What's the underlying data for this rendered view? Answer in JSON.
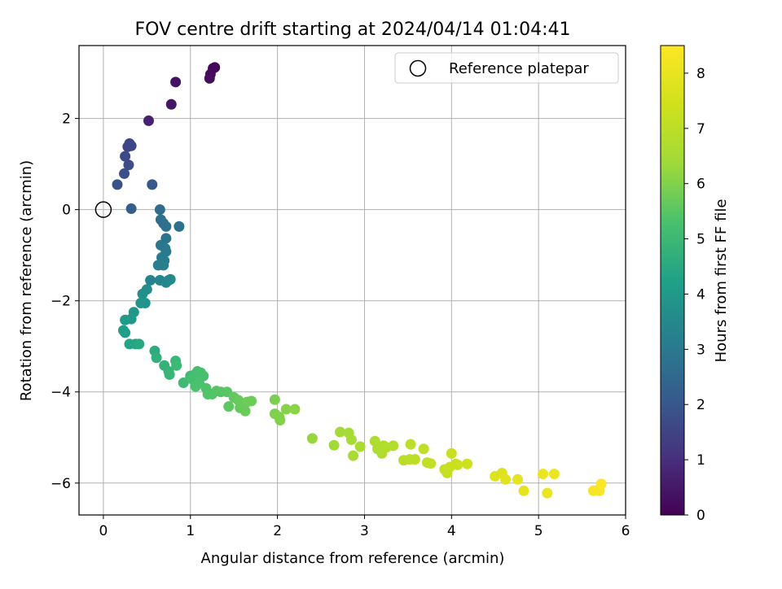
{
  "chart_data": {
    "type": "scatter",
    "title": "FOV centre drift starting at 2024/04/14 01:04:41",
    "xlabel": "Angular distance from reference (arcmin)",
    "ylabel": "Rotation from reference (arcmin)",
    "xlim": [
      -0.28,
      6.0
    ],
    "ylim": [
      -6.7,
      3.6
    ],
    "xticks": [
      0,
      1,
      2,
      3,
      4,
      5,
      6
    ],
    "yticks": [
      -6,
      -4,
      -2,
      0,
      2
    ],
    "grid": true,
    "legend": {
      "position": "top-right",
      "entries": [
        "Reference platepar"
      ]
    },
    "reference_point": {
      "x": 0,
      "y": 0
    },
    "colorbar": {
      "label": "Hours from first FF file",
      "range": [
        0,
        8.5
      ],
      "ticks": [
        0,
        1,
        2,
        3,
        4,
        5,
        6,
        7,
        8
      ],
      "colormap": "viridis"
    },
    "points": [
      {
        "x": 1.28,
        "y": 3.12,
        "t": 0.1
      },
      {
        "x": 1.26,
        "y": 3.1,
        "t": 0.15
      },
      {
        "x": 1.23,
        "y": 2.97,
        "t": 0.2
      },
      {
        "x": 1.22,
        "y": 2.88,
        "t": 0.25
      },
      {
        "x": 0.83,
        "y": 2.8,
        "t": 0.35
      },
      {
        "x": 0.78,
        "y": 2.31,
        "t": 0.45
      },
      {
        "x": 0.52,
        "y": 1.95,
        "t": 0.7
      },
      {
        "x": 0.3,
        "y": 1.45,
        "t": 1.5
      },
      {
        "x": 0.32,
        "y": 1.4,
        "t": 1.55
      },
      {
        "x": 0.28,
        "y": 1.38,
        "t": 1.6
      },
      {
        "x": 0.25,
        "y": 1.17,
        "t": 1.7
      },
      {
        "x": 0.29,
        "y": 0.98,
        "t": 1.75
      },
      {
        "x": 0.24,
        "y": 0.79,
        "t": 1.8
      },
      {
        "x": 0.16,
        "y": 0.55,
        "t": 1.9
      },
      {
        "x": 0.56,
        "y": 0.55,
        "t": 2.0
      },
      {
        "x": 0.32,
        "y": 0.02,
        "t": 2.2
      },
      {
        "x": 0.65,
        "y": 0.0,
        "t": 2.6
      },
      {
        "x": 0.66,
        "y": -0.22,
        "t": 2.65
      },
      {
        "x": 0.69,
        "y": -0.3,
        "t": 2.7
      },
      {
        "x": 0.72,
        "y": -0.37,
        "t": 2.75
      },
      {
        "x": 0.87,
        "y": -0.37,
        "t": 2.8
      },
      {
        "x": 0.72,
        "y": -0.63,
        "t": 2.85
      },
      {
        "x": 0.66,
        "y": -0.78,
        "t": 2.9
      },
      {
        "x": 0.71,
        "y": -0.85,
        "t": 2.95
      },
      {
        "x": 0.72,
        "y": -0.92,
        "t": 3.0
      },
      {
        "x": 0.67,
        "y": -1.05,
        "t": 3.05
      },
      {
        "x": 0.7,
        "y": -1.12,
        "t": 3.1
      },
      {
        "x": 0.63,
        "y": -1.22,
        "t": 3.15
      },
      {
        "x": 0.69,
        "y": -1.22,
        "t": 3.2
      },
      {
        "x": 0.54,
        "y": -1.55,
        "t": 3.3
      },
      {
        "x": 0.65,
        "y": -1.55,
        "t": 3.35
      },
      {
        "x": 0.72,
        "y": -1.6,
        "t": 3.4
      },
      {
        "x": 0.75,
        "y": -1.55,
        "t": 3.45
      },
      {
        "x": 0.77,
        "y": -1.53,
        "t": 3.5
      },
      {
        "x": 0.5,
        "y": -1.75,
        "t": 3.6
      },
      {
        "x": 0.45,
        "y": -1.85,
        "t": 3.7
      },
      {
        "x": 0.48,
        "y": -2.05,
        "t": 3.8
      },
      {
        "x": 0.43,
        "y": -2.05,
        "t": 3.85
      },
      {
        "x": 0.35,
        "y": -2.25,
        "t": 3.9
      },
      {
        "x": 0.32,
        "y": -2.4,
        "t": 4.0
      },
      {
        "x": 0.25,
        "y": -2.42,
        "t": 4.05
      },
      {
        "x": 0.23,
        "y": -2.65,
        "t": 4.15
      },
      {
        "x": 0.25,
        "y": -2.7,
        "t": 4.2
      },
      {
        "x": 0.3,
        "y": -2.95,
        "t": 4.35
      },
      {
        "x": 0.37,
        "y": -2.95,
        "t": 4.4
      },
      {
        "x": 0.41,
        "y": -2.95,
        "t": 4.45
      },
      {
        "x": 0.59,
        "y": -3.1,
        "t": 4.6
      },
      {
        "x": 0.61,
        "y": -3.25,
        "t": 4.7
      },
      {
        "x": 0.7,
        "y": -3.42,
        "t": 4.8
      },
      {
        "x": 0.75,
        "y": -3.55,
        "t": 4.85
      },
      {
        "x": 0.76,
        "y": -3.62,
        "t": 4.9
      },
      {
        "x": 0.83,
        "y": -3.32,
        "t": 4.95
      },
      {
        "x": 0.84,
        "y": -3.42,
        "t": 5.0
      },
      {
        "x": 0.92,
        "y": -3.8,
        "t": 5.05
      },
      {
        "x": 1.0,
        "y": -3.65,
        "t": 5.1
      },
      {
        "x": 1.05,
        "y": -3.62,
        "t": 5.15
      },
      {
        "x": 1.08,
        "y": -3.55,
        "t": 5.2
      },
      {
        "x": 1.02,
        "y": -3.72,
        "t": 5.2
      },
      {
        "x": 1.12,
        "y": -3.58,
        "t": 5.25
      },
      {
        "x": 1.15,
        "y": -3.65,
        "t": 5.25
      },
      {
        "x": 1.1,
        "y": -3.8,
        "t": 5.3
      },
      {
        "x": 1.06,
        "y": -3.88,
        "t": 5.3
      },
      {
        "x": 1.18,
        "y": -3.92,
        "t": 5.35
      },
      {
        "x": 1.2,
        "y": -4.05,
        "t": 5.4
      },
      {
        "x": 1.25,
        "y": -4.05,
        "t": 5.4
      },
      {
        "x": 1.3,
        "y": -3.98,
        "t": 5.45
      },
      {
        "x": 1.35,
        "y": -4.0,
        "t": 5.45
      },
      {
        "x": 1.42,
        "y": -4.0,
        "t": 5.5
      },
      {
        "x": 1.44,
        "y": -4.32,
        "t": 5.55
      },
      {
        "x": 1.5,
        "y": -4.12,
        "t": 5.6
      },
      {
        "x": 1.55,
        "y": -4.18,
        "t": 5.65
      },
      {
        "x": 1.57,
        "y": -4.35,
        "t": 5.65
      },
      {
        "x": 1.6,
        "y": -4.28,
        "t": 5.7
      },
      {
        "x": 1.63,
        "y": -4.42,
        "t": 5.7
      },
      {
        "x": 1.65,
        "y": -4.22,
        "t": 5.75
      },
      {
        "x": 1.7,
        "y": -4.2,
        "t": 5.75
      },
      {
        "x": 1.97,
        "y": -4.17,
        "t": 5.9
      },
      {
        "x": 1.97,
        "y": -4.48,
        "t": 5.95
      },
      {
        "x": 2.02,
        "y": -4.55,
        "t": 6.0
      },
      {
        "x": 2.03,
        "y": -4.62,
        "t": 6.0
      },
      {
        "x": 2.1,
        "y": -4.38,
        "t": 6.05
      },
      {
        "x": 2.2,
        "y": -4.38,
        "t": 6.1
      },
      {
        "x": 2.4,
        "y": -5.02,
        "t": 6.25
      },
      {
        "x": 2.65,
        "y": -5.17,
        "t": 6.4
      },
      {
        "x": 2.72,
        "y": -4.88,
        "t": 6.45
      },
      {
        "x": 2.82,
        "y": -4.9,
        "t": 6.5
      },
      {
        "x": 2.85,
        "y": -5.05,
        "t": 6.55
      },
      {
        "x": 2.87,
        "y": -5.4,
        "t": 6.55
      },
      {
        "x": 2.95,
        "y": -5.2,
        "t": 6.6
      },
      {
        "x": 3.12,
        "y": -5.08,
        "t": 6.7
      },
      {
        "x": 3.15,
        "y": -5.25,
        "t": 6.7
      },
      {
        "x": 3.2,
        "y": -5.35,
        "t": 6.75
      },
      {
        "x": 3.22,
        "y": -5.18,
        "t": 6.75
      },
      {
        "x": 3.25,
        "y": -5.22,
        "t": 6.8
      },
      {
        "x": 3.33,
        "y": -5.18,
        "t": 6.8
      },
      {
        "x": 3.45,
        "y": -5.5,
        "t": 6.9
      },
      {
        "x": 3.52,
        "y": -5.48,
        "t": 6.95
      },
      {
        "x": 3.53,
        "y": -5.15,
        "t": 6.95
      },
      {
        "x": 3.58,
        "y": -5.48,
        "t": 7.0
      },
      {
        "x": 3.68,
        "y": -5.25,
        "t": 7.05
      },
      {
        "x": 3.72,
        "y": -5.55,
        "t": 7.1
      },
      {
        "x": 3.76,
        "y": -5.57,
        "t": 7.1
      },
      {
        "x": 3.92,
        "y": -5.7,
        "t": 7.2
      },
      {
        "x": 3.95,
        "y": -5.78,
        "t": 7.2
      },
      {
        "x": 3.98,
        "y": -5.65,
        "t": 7.25
      },
      {
        "x": 4.0,
        "y": -5.35,
        "t": 7.25
      },
      {
        "x": 4.05,
        "y": -5.58,
        "t": 7.3
      },
      {
        "x": 4.07,
        "y": -5.6,
        "t": 7.3
      },
      {
        "x": 4.18,
        "y": -5.58,
        "t": 7.4
      },
      {
        "x": 4.5,
        "y": -5.85,
        "t": 7.75
      },
      {
        "x": 4.58,
        "y": -5.78,
        "t": 7.8
      },
      {
        "x": 4.62,
        "y": -5.92,
        "t": 7.85
      },
      {
        "x": 4.76,
        "y": -5.92,
        "t": 7.9
      },
      {
        "x": 4.83,
        "y": -6.17,
        "t": 7.95
      },
      {
        "x": 5.05,
        "y": -5.8,
        "t": 8.05
      },
      {
        "x": 5.1,
        "y": -6.22,
        "t": 8.1
      },
      {
        "x": 5.18,
        "y": -5.8,
        "t": 8.1
      },
      {
        "x": 5.63,
        "y": -6.17,
        "t": 8.3
      },
      {
        "x": 5.68,
        "y": -6.15,
        "t": 8.35
      },
      {
        "x": 5.7,
        "y": -6.17,
        "t": 8.38
      },
      {
        "x": 5.72,
        "y": -6.02,
        "t": 8.4
      }
    ]
  }
}
